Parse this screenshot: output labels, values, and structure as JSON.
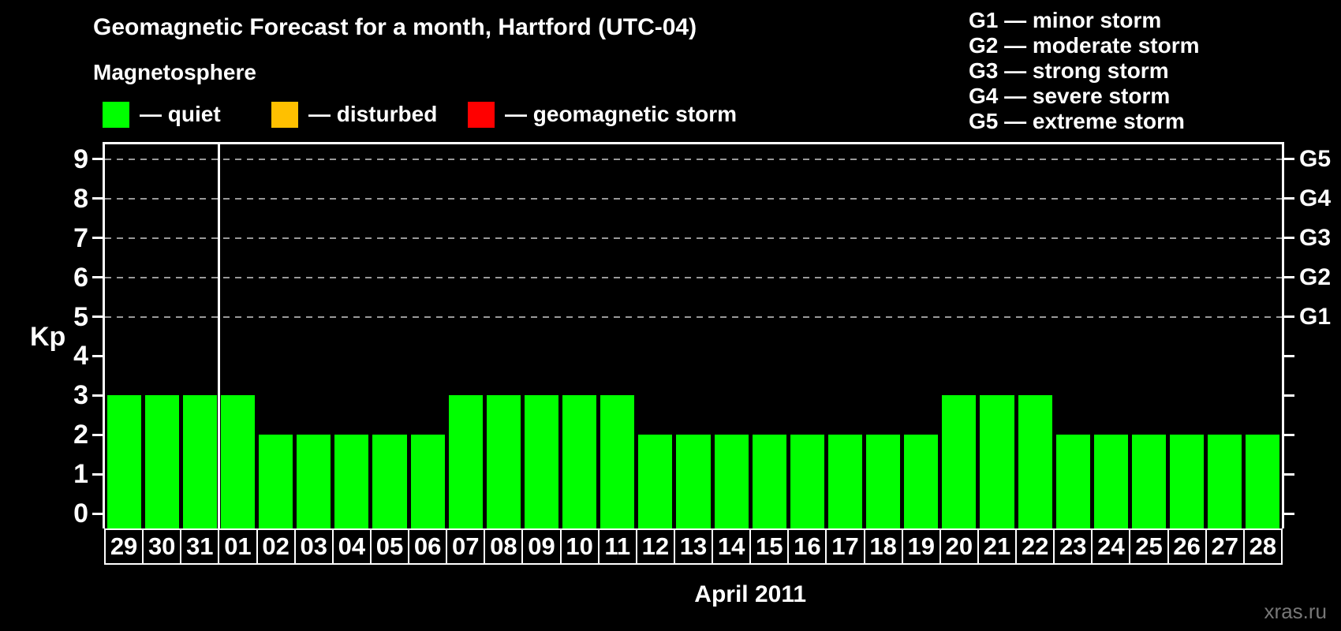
{
  "title": "Geomagnetic Forecast for a month, Hartford (UTC-04)",
  "subtitle": "Magnetosphere",
  "legend": {
    "quiet": {
      "label": "— quiet",
      "color": "#00ff00"
    },
    "disturbed": {
      "label": "— disturbed",
      "color": "#ffc000"
    },
    "storm": {
      "label": "— geomagnetic storm",
      "color": "#ff0000"
    }
  },
  "storm_scale_legend": {
    "lines": [
      "G1 — minor storm",
      "G2 — moderate storm",
      "G3 — strong storm",
      "G4 — severe storm",
      "G5 — extreme storm"
    ]
  },
  "watermark": "xras.ru",
  "chart_data": {
    "type": "bar",
    "title": "Geomagnetic Forecast for a month, Hartford (UTC-04)",
    "categories": [
      "29",
      "30",
      "31",
      "01",
      "02",
      "03",
      "04",
      "05",
      "06",
      "07",
      "08",
      "09",
      "10",
      "11",
      "12",
      "13",
      "14",
      "15",
      "16",
      "17",
      "18",
      "19",
      "20",
      "21",
      "22",
      "23",
      "24",
      "25",
      "26",
      "27",
      "28"
    ],
    "values": [
      3,
      3,
      3,
      3,
      2,
      2,
      2,
      2,
      2,
      3,
      3,
      3,
      3,
      3,
      2,
      2,
      2,
      2,
      2,
      2,
      2,
      2,
      3,
      3,
      3,
      2,
      2,
      2,
      2,
      2,
      2
    ],
    "bar_color": "#00ff00",
    "ylabel": "Kp",
    "xlabel": "April 2011",
    "ylim": [
      0,
      9
    ],
    "yticks": [
      0,
      1,
      2,
      3,
      4,
      5,
      6,
      7,
      8,
      9
    ],
    "gridline_levels": [
      5,
      6,
      7,
      8,
      9
    ],
    "gridline_color": "#999999",
    "axis_color": "#ffffff",
    "right_axis_labels": [
      {
        "label": "G1",
        "kp": 5
      },
      {
        "label": "G2",
        "kp": 6
      },
      {
        "label": "G3",
        "kp": 7
      },
      {
        "label": "G4",
        "kp": 8
      },
      {
        "label": "G5",
        "kp": 9
      }
    ],
    "month_boundary_after": "31",
    "grid": "dashed-horizontal",
    "legend_position": "top-left"
  }
}
